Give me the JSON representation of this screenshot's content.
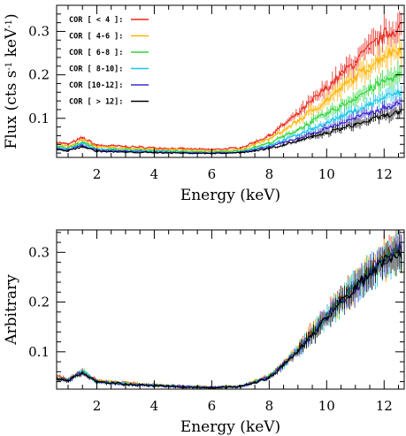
{
  "chart_data": [
    {
      "type": "line",
      "panel": "top",
      "title": "",
      "xlabel": "Energy (keV)",
      "ylabel_main": "Flux (cts s",
      "ylabel_sup1": "-1",
      "ylabel_mid": " keV",
      "ylabel_sup2": "-1",
      "ylabel_end": ")",
      "xlim": [
        0.6,
        12.7
      ],
      "ylim": [
        0.01,
        0.36
      ],
      "xticks": [
        2,
        4,
        6,
        8,
        10,
        12
      ],
      "xticklabels": [
        "2",
        "4",
        "6",
        "8",
        "10",
        "12"
      ],
      "yticks": [
        0.1,
        0.2,
        0.3
      ],
      "yticklabels": [
        "0.1",
        "0.2",
        "0.3"
      ],
      "legend_position": "top-left",
      "series": [
        {
          "name": "COR [ < 4 ]:",
          "color": "#e8281e",
          "x": [
            0.6,
            1.0,
            1.5,
            2.0,
            3.0,
            4.0,
            5.0,
            6.0,
            7.0,
            7.5,
            8.0,
            8.5,
            9.0,
            9.5,
            10.0,
            10.5,
            11.0,
            11.5,
            12.0,
            12.5
          ],
          "y": [
            0.045,
            0.04,
            0.055,
            0.038,
            0.035,
            0.032,
            0.03,
            0.028,
            0.032,
            0.045,
            0.06,
            0.085,
            0.11,
            0.14,
            0.17,
            0.2,
            0.23,
            0.26,
            0.29,
            0.31
          ]
        },
        {
          "name": "COR [ 4-6 ]:",
          "color": "#ffb300",
          "x": [
            0.6,
            1.0,
            1.5,
            2.0,
            3.0,
            4.0,
            5.0,
            6.0,
            7.0,
            7.5,
            8.0,
            8.5,
            9.0,
            9.5,
            10.0,
            10.5,
            11.0,
            11.5,
            12.0,
            12.5
          ],
          "y": [
            0.04,
            0.036,
            0.05,
            0.034,
            0.031,
            0.029,
            0.027,
            0.025,
            0.028,
            0.04,
            0.052,
            0.072,
            0.094,
            0.118,
            0.142,
            0.168,
            0.194,
            0.22,
            0.245,
            0.26
          ]
        },
        {
          "name": "COR [ 6-8 ]:",
          "color": "#2fd43a",
          "x": [
            0.6,
            1.0,
            1.5,
            2.0,
            3.0,
            4.0,
            5.0,
            6.0,
            7.0,
            7.5,
            8.0,
            8.5,
            9.0,
            9.5,
            10.0,
            10.5,
            11.0,
            11.5,
            12.0,
            12.5
          ],
          "y": [
            0.035,
            0.032,
            0.045,
            0.03,
            0.028,
            0.026,
            0.024,
            0.022,
            0.025,
            0.034,
            0.043,
            0.058,
            0.074,
            0.092,
            0.11,
            0.128,
            0.148,
            0.166,
            0.185,
            0.2
          ]
        },
        {
          "name": "COR [ 8-10]:",
          "color": "#18c7e6",
          "x": [
            0.6,
            1.0,
            1.5,
            2.0,
            3.0,
            4.0,
            5.0,
            6.0,
            7.0,
            7.5,
            8.0,
            8.5,
            9.0,
            9.5,
            10.0,
            10.5,
            11.0,
            11.5,
            12.0,
            12.5
          ],
          "y": [
            0.032,
            0.029,
            0.042,
            0.028,
            0.026,
            0.024,
            0.022,
            0.021,
            0.023,
            0.03,
            0.038,
            0.05,
            0.062,
            0.076,
            0.09,
            0.104,
            0.118,
            0.132,
            0.148,
            0.158
          ]
        },
        {
          "name": "COR [10-12]:",
          "color": "#3b2bd0",
          "x": [
            0.6,
            1.0,
            1.5,
            2.0,
            3.0,
            4.0,
            5.0,
            6.0,
            7.0,
            7.5,
            8.0,
            8.5,
            9.0,
            9.5,
            10.0,
            10.5,
            11.0,
            11.5,
            12.0,
            12.5
          ],
          "y": [
            0.03,
            0.027,
            0.038,
            0.026,
            0.024,
            0.022,
            0.021,
            0.02,
            0.022,
            0.027,
            0.034,
            0.044,
            0.054,
            0.065,
            0.077,
            0.089,
            0.1,
            0.112,
            0.124,
            0.134
          ]
        },
        {
          "name": "COR [ > 12]:",
          "color": "#000000",
          "x": [
            0.6,
            1.0,
            1.5,
            2.0,
            3.0,
            4.0,
            5.0,
            6.0,
            7.0,
            7.5,
            8.0,
            8.5,
            9.0,
            9.5,
            10.0,
            10.5,
            11.0,
            11.5,
            12.0,
            12.5
          ],
          "y": [
            0.028,
            0.025,
            0.035,
            0.024,
            0.022,
            0.021,
            0.02,
            0.019,
            0.021,
            0.025,
            0.031,
            0.039,
            0.048,
            0.057,
            0.066,
            0.076,
            0.086,
            0.095,
            0.105,
            0.114
          ]
        }
      ]
    },
    {
      "type": "line",
      "panel": "bottom",
      "title": "",
      "xlabel": "Energy (keV)",
      "ylabel": "Arbitrary",
      "xlim": [
        0.6,
        12.7
      ],
      "ylim": [
        0.025,
        0.345
      ],
      "xticks": [
        2,
        4,
        6,
        8,
        10,
        12
      ],
      "xticklabels": [
        "2",
        "4",
        "6",
        "8",
        "10",
        "12"
      ],
      "yticks": [
        0.1,
        0.2,
        0.3
      ],
      "yticklabels": [
        "0.1",
        "0.2",
        "0.3"
      ],
      "series": [
        {
          "name": "",
          "color": "#e8281e",
          "x": [
            0.6,
            1.0,
            1.5,
            2.0,
            3.0,
            4.0,
            5.0,
            6.0,
            7.0,
            7.5,
            8.0,
            8.5,
            9.0,
            9.5,
            10.0,
            10.5,
            11.0,
            11.5,
            12.0,
            12.5
          ],
          "y": [
            0.05,
            0.045,
            0.062,
            0.042,
            0.038,
            0.034,
            0.031,
            0.029,
            0.03,
            0.04,
            0.05,
            0.075,
            0.105,
            0.14,
            0.172,
            0.205,
            0.235,
            0.262,
            0.29,
            0.31
          ]
        },
        {
          "name": "",
          "color": "#ffb300",
          "x": [
            0.6,
            1.0,
            1.5,
            2.0,
            3.0,
            4.0,
            5.0,
            6.0,
            7.0,
            7.5,
            8.0,
            8.5,
            9.0,
            9.5,
            10.0,
            10.5,
            11.0,
            11.5,
            12.0,
            12.5
          ],
          "y": [
            0.049,
            0.044,
            0.06,
            0.041,
            0.037,
            0.033,
            0.03,
            0.029,
            0.031,
            0.041,
            0.051,
            0.076,
            0.106,
            0.139,
            0.171,
            0.204,
            0.233,
            0.26,
            0.288,
            0.308
          ]
        },
        {
          "name": "",
          "color": "#2fd43a",
          "x": [
            0.6,
            1.0,
            1.5,
            2.0,
            3.0,
            4.0,
            5.0,
            6.0,
            7.0,
            7.5,
            8.0,
            8.5,
            9.0,
            9.5,
            10.0,
            10.5,
            11.0,
            11.5,
            12.0,
            12.5
          ],
          "y": [
            0.048,
            0.043,
            0.061,
            0.04,
            0.036,
            0.033,
            0.03,
            0.028,
            0.03,
            0.04,
            0.05,
            0.074,
            0.104,
            0.138,
            0.17,
            0.203,
            0.232,
            0.259,
            0.287,
            0.306
          ]
        },
        {
          "name": "",
          "color": "#18c7e6",
          "x": [
            0.6,
            1.0,
            1.5,
            2.0,
            3.0,
            4.0,
            5.0,
            6.0,
            7.0,
            7.5,
            8.0,
            8.5,
            9.0,
            9.5,
            10.0,
            10.5,
            11.0,
            11.5,
            12.0,
            12.5
          ],
          "y": [
            0.047,
            0.043,
            0.06,
            0.04,
            0.036,
            0.032,
            0.03,
            0.028,
            0.03,
            0.039,
            0.049,
            0.074,
            0.103,
            0.137,
            0.169,
            0.202,
            0.231,
            0.258,
            0.286,
            0.305
          ]
        },
        {
          "name": "",
          "color": "#3b2bd0",
          "x": [
            0.6,
            1.0,
            1.5,
            2.0,
            3.0,
            4.0,
            5.0,
            6.0,
            7.0,
            7.5,
            8.0,
            8.5,
            9.0,
            9.5,
            10.0,
            10.5,
            11.0,
            11.5,
            12.0,
            12.5
          ],
          "y": [
            0.047,
            0.042,
            0.059,
            0.04,
            0.035,
            0.032,
            0.03,
            0.028,
            0.03,
            0.039,
            0.049,
            0.073,
            0.103,
            0.136,
            0.168,
            0.201,
            0.23,
            0.257,
            0.285,
            0.304
          ]
        },
        {
          "name": "",
          "color": "#000000",
          "x": [
            0.6,
            1.0,
            1.5,
            2.0,
            3.0,
            4.0,
            5.0,
            6.0,
            7.0,
            7.5,
            8.0,
            8.5,
            9.0,
            9.5,
            10.0,
            10.5,
            11.0,
            11.5,
            12.0,
            12.5
          ],
          "y": [
            0.046,
            0.042,
            0.058,
            0.039,
            0.035,
            0.032,
            0.029,
            0.028,
            0.03,
            0.038,
            0.048,
            0.073,
            0.102,
            0.135,
            0.167,
            0.2,
            0.229,
            0.256,
            0.284,
            0.303
          ]
        }
      ]
    }
  ]
}
